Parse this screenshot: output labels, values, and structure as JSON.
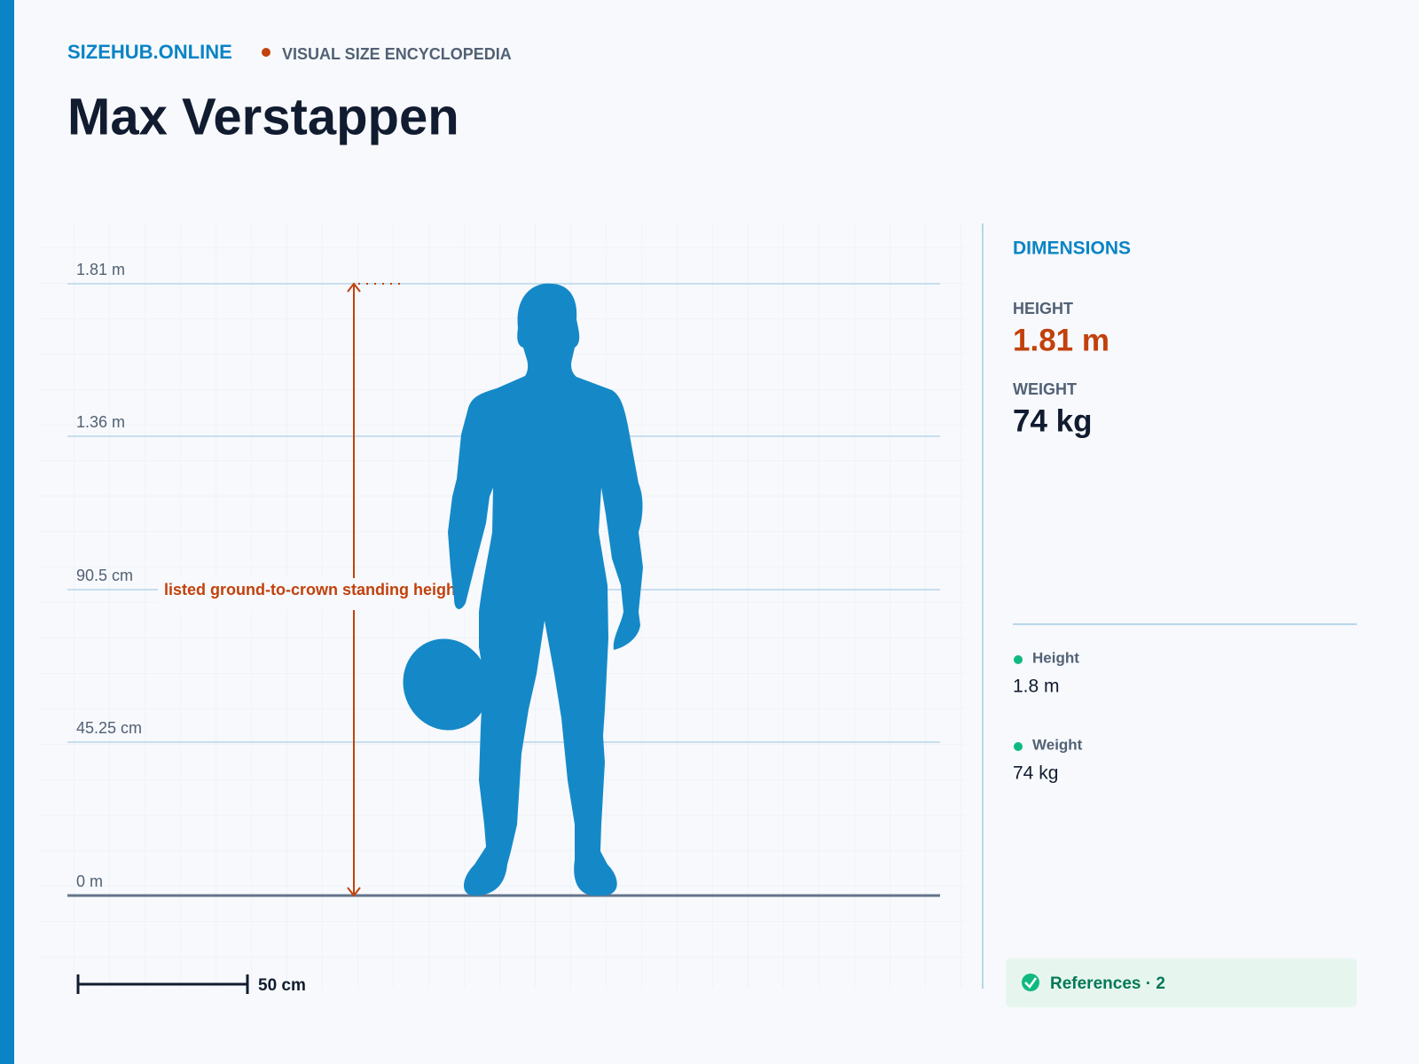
{
  "header": {
    "brand": "SIZEHUB.ONLINE",
    "tagline": "VISUAL SIZE ENCYCLOPEDIA",
    "title": "Max Verstappen"
  },
  "figure": {
    "scale_labels": [
      "1.81 m",
      "1.36 m",
      "90.5 cm",
      "45.25 cm",
      "0 m"
    ],
    "annotation": "listed ground-to-crown standing height",
    "scale_bar": "50 cm"
  },
  "sidebar": {
    "heading": "DIMENSIONS",
    "stats": [
      {
        "label": "HEIGHT",
        "value": "1.81 m"
      },
      {
        "label": "WEIGHT",
        "value": "74 kg"
      }
    ],
    "facts": [
      {
        "label": "Height",
        "value": "1.8 m"
      },
      {
        "label": "Weight",
        "value": "74 kg"
      }
    ],
    "references": "References · 2"
  }
}
